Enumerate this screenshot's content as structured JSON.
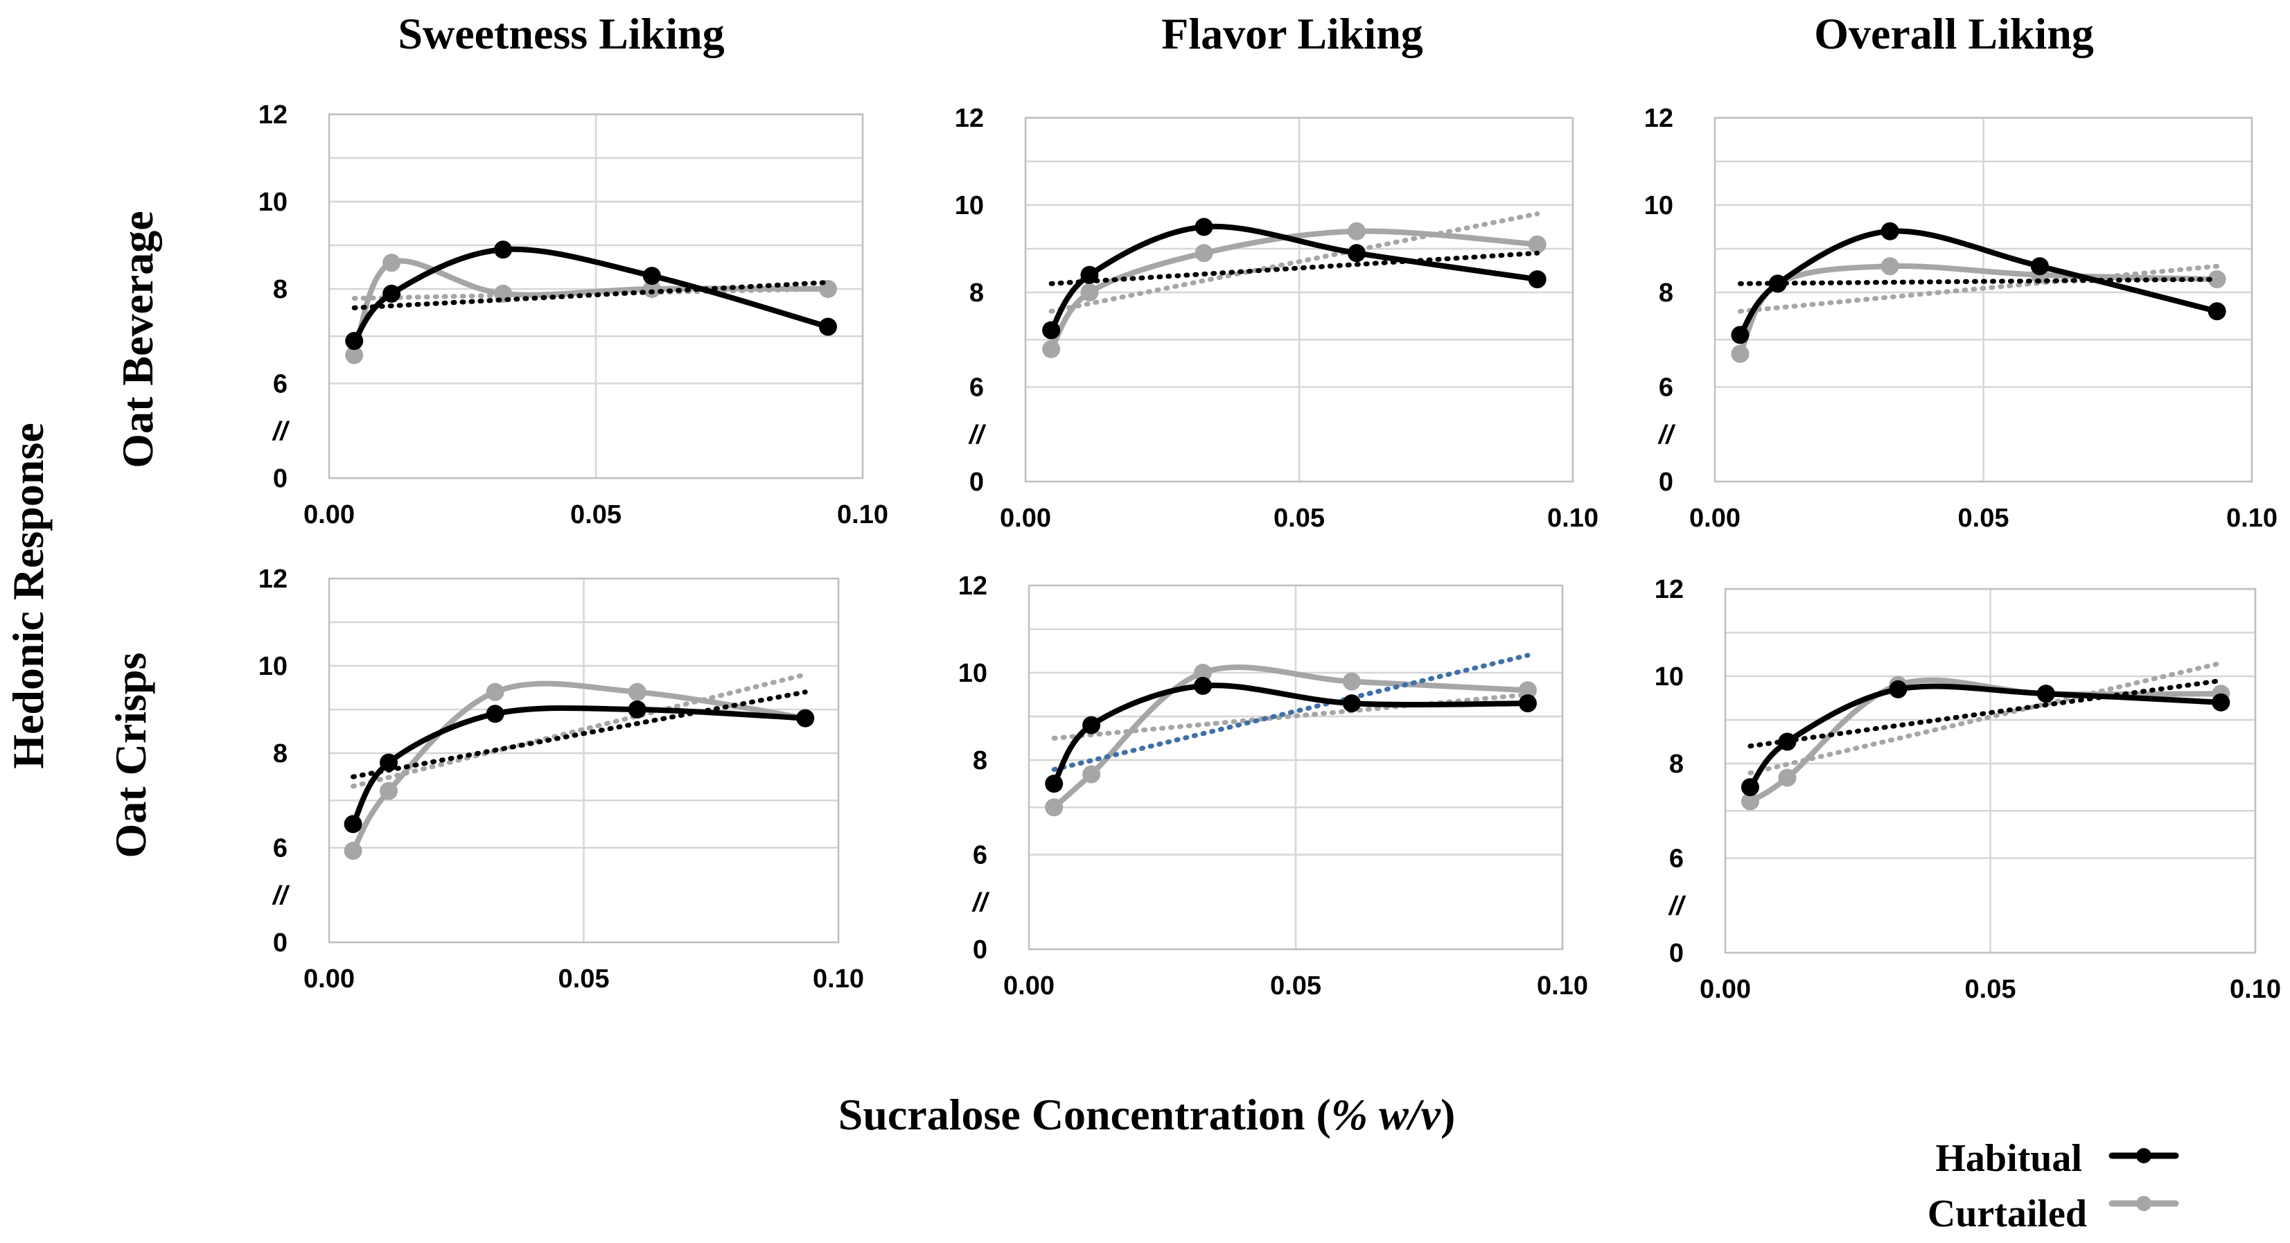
{
  "figure": {
    "col_titles": [
      "Sweetness Liking",
      "Flavor Liking",
      "Overall Liking"
    ],
    "row_titles": [
      "Oat Beverage",
      "Oat Crisps"
    ],
    "ylabel": "Hedonic Response",
    "xlabel_main": "Sucralose Concentration (",
    "xlabel_italic": "% w/v",
    "xlabel_close": ")",
    "axis_break": "//",
    "colors": {
      "habitual": "#000000",
      "curtailed": "#a6a6a6",
      "trend_alt": "#3f6fa8"
    },
    "legend": [
      {
        "label": "Habitual",
        "color": "#000000"
      },
      {
        "label": "Curtailed",
        "color": "#a6a6a6"
      }
    ]
  },
  "chart_data": [
    {
      "type": "line",
      "title": "Sweetness Liking",
      "row": "Oat Beverage",
      "xlim": [
        0,
        0.1
      ],
      "xticks": [
        "0.00",
        "0.05",
        "0.10"
      ],
      "yticks": [
        "0",
        "6",
        "8",
        "10",
        "12"
      ],
      "x": [
        0.0047,
        0.0117,
        0.0326,
        0.0605,
        0.0935
      ],
      "series": [
        {
          "name": "Habitual",
          "values": [
            6.9,
            7.9,
            8.9,
            8.3,
            7.2
          ],
          "trend": [
            7.6,
            8.15
          ]
        },
        {
          "name": "Curtailed",
          "values": [
            6.6,
            8.6,
            7.9,
            8.0,
            8.0
          ],
          "trend": [
            7.8,
            8.0
          ]
        }
      ]
    },
    {
      "type": "line",
      "title": "Flavor Liking",
      "row": "Oat Beverage",
      "xlim": [
        0,
        0.1
      ],
      "xticks": [
        "0.00",
        "0.05",
        "0.10"
      ],
      "yticks": [
        "0",
        "6",
        "8",
        "10",
        "12"
      ],
      "x": [
        0.0047,
        0.0117,
        0.0326,
        0.0605,
        0.0935
      ],
      "series": [
        {
          "name": "Habitual",
          "values": [
            7.2,
            8.4,
            9.5,
            8.9,
            8.3
          ],
          "trend": [
            8.2,
            8.9
          ]
        },
        {
          "name": "Curtailed",
          "values": [
            6.8,
            8.0,
            8.9,
            9.4,
            9.1
          ],
          "trend": [
            7.6,
            9.8
          ]
        }
      ]
    },
    {
      "type": "line",
      "title": "Overall Liking",
      "row": "Oat Beverage",
      "xlim": [
        0,
        0.1
      ],
      "xticks": [
        "0.00",
        "0.05",
        "0.10"
      ],
      "yticks": [
        "0",
        "6",
        "8",
        "10",
        "12"
      ],
      "x": [
        0.0047,
        0.0117,
        0.0326,
        0.0605,
        0.0935
      ],
      "series": [
        {
          "name": "Habitual",
          "values": [
            7.1,
            8.2,
            9.4,
            8.6,
            7.6
          ],
          "trend": [
            8.2,
            8.3
          ]
        },
        {
          "name": "Curtailed",
          "values": [
            6.7,
            8.2,
            8.6,
            8.4,
            8.3
          ],
          "trend": [
            7.6,
            8.6
          ]
        }
      ]
    },
    {
      "type": "line",
      "title": "Sweetness Liking",
      "row": "Oat Crisps",
      "xlim": [
        0,
        0.1
      ],
      "xticks": [
        "0.00",
        "0.05",
        "0.10"
      ],
      "yticks": [
        "0",
        "6",
        "8",
        "10",
        "12"
      ],
      "x": [
        0.0047,
        0.0117,
        0.0326,
        0.0605,
        0.0935
      ],
      "series": [
        {
          "name": "Habitual",
          "values": [
            6.5,
            7.8,
            8.9,
            9.0,
            8.8
          ],
          "trend": [
            7.5,
            9.4
          ]
        },
        {
          "name": "Curtailed",
          "values": [
            5.8,
            7.2,
            9.4,
            9.4,
            8.8
          ],
          "trend": [
            7.3,
            9.8
          ]
        }
      ]
    },
    {
      "type": "line",
      "title": "Flavor Liking",
      "row": "Oat Crisps",
      "xlim": [
        0,
        0.1
      ],
      "xticks": [
        "0.00",
        "0.05",
        "0.10"
      ],
      "yticks": [
        "0",
        "6",
        "8",
        "10",
        "12"
      ],
      "x": [
        0.0047,
        0.0117,
        0.0326,
        0.0605,
        0.0935
      ],
      "series": [
        {
          "name": "Habitual",
          "values": [
            7.5,
            8.8,
            9.7,
            9.3,
            9.3
          ],
          "trend": [
            7.8,
            10.4
          ],
          "trend_color": "#3f6fa8"
        },
        {
          "name": "Curtailed",
          "values": [
            7.0,
            7.7,
            10.0,
            9.8,
            9.6
          ],
          "trend": [
            8.5,
            9.5
          ]
        }
      ]
    },
    {
      "type": "line",
      "title": "Overall Liking",
      "row": "Oat Crisps",
      "xlim": [
        0,
        0.1
      ],
      "xticks": [
        "0.00",
        "0.05",
        "0.10"
      ],
      "yticks": [
        "0",
        "6",
        "8",
        "10",
        "12"
      ],
      "x": [
        0.0047,
        0.0117,
        0.0326,
        0.0605,
        0.0935
      ],
      "series": [
        {
          "name": "Habitual",
          "values": [
            7.5,
            8.5,
            9.7,
            9.6,
            9.4
          ],
          "trend": [
            8.4,
            9.9
          ]
        },
        {
          "name": "Curtailed",
          "values": [
            7.2,
            7.7,
            9.8,
            9.6,
            9.6
          ],
          "trend": [
            7.8,
            10.3
          ]
        }
      ]
    }
  ]
}
